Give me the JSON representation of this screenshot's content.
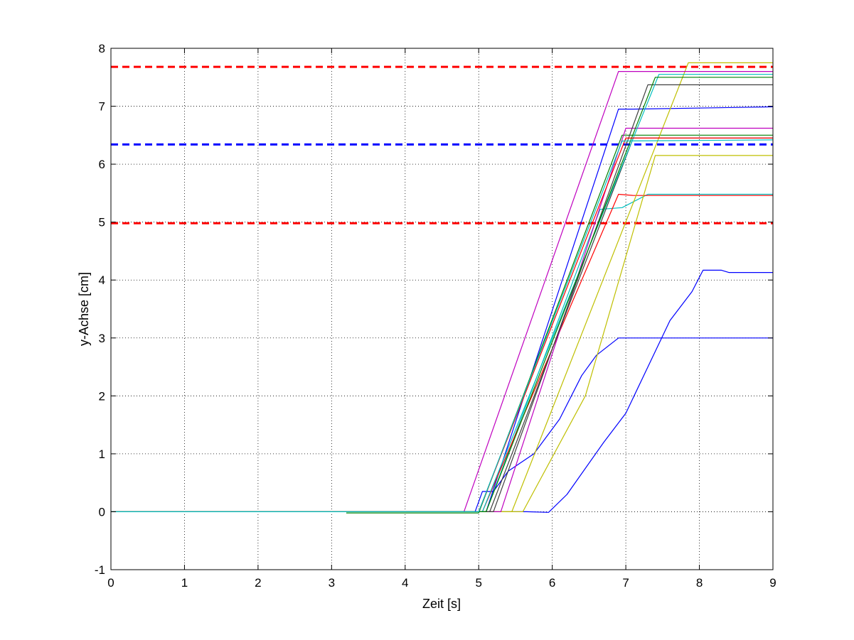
{
  "chart_data": {
    "type": "line",
    "xlabel": "Zeit [s]",
    "ylabel": "y-Achse [cm]",
    "xlim": [
      0,
      9
    ],
    "ylim": [
      -1,
      8
    ],
    "x_ticks": [
      0,
      1,
      2,
      3,
      4,
      5,
      6,
      7,
      8,
      9
    ],
    "y_ticks": [
      -1,
      0,
      1,
      2,
      3,
      4,
      5,
      6,
      7,
      8
    ],
    "grid": "on, dotted",
    "legend": "none",
    "reference_lines": [
      {
        "y": 7.68,
        "color": "#ff0000",
        "style": "dashed"
      },
      {
        "y": 6.34,
        "color": "#0000ff",
        "style": "dashed"
      },
      {
        "y": 4.98,
        "color": "#ff0000",
        "style": "dashed"
      }
    ],
    "series": [
      {
        "color": "#0000ff",
        "points": [
          [
            0.0,
            0.0
          ],
          [
            3.0,
            0.0
          ],
          [
            5.65,
            0.0
          ],
          [
            5.95,
            -0.01
          ],
          [
            6.2,
            0.3
          ],
          [
            6.7,
            1.2
          ],
          [
            7.0,
            1.7
          ],
          [
            7.3,
            2.5
          ],
          [
            7.6,
            3.3
          ],
          [
            7.9,
            3.8
          ],
          [
            8.05,
            4.17
          ],
          [
            8.3,
            4.17
          ],
          [
            8.4,
            4.13
          ],
          [
            9.0,
            4.13
          ]
        ]
      },
      {
        "color": "#0000ff",
        "points": [
          [
            0.0,
            0.0
          ],
          [
            4.95,
            0.0
          ],
          [
            5.05,
            0.35
          ],
          [
            5.2,
            0.35
          ],
          [
            5.4,
            0.7
          ],
          [
            5.75,
            1.0
          ],
          [
            6.1,
            1.6
          ],
          [
            6.4,
            2.35
          ],
          [
            6.6,
            2.7
          ],
          [
            6.9,
            3.0
          ],
          [
            7.1,
            3.0
          ],
          [
            9.0,
            3.0
          ]
        ]
      },
      {
        "color": "#0000ff",
        "points": [
          [
            0.0,
            0.0
          ],
          [
            5.1,
            0.0
          ],
          [
            6.9,
            6.95
          ],
          [
            7.1,
            6.95
          ],
          [
            9.0,
            6.99
          ]
        ]
      },
      {
        "color": "#00bfbf",
        "points": [
          [
            0.0,
            0.0
          ],
          [
            5.1,
            0.0
          ],
          [
            6.65,
            5.22
          ],
          [
            6.95,
            5.25
          ],
          [
            7.3,
            5.48
          ],
          [
            9.0,
            5.48
          ]
        ]
      },
      {
        "color": "#ff0000",
        "points": [
          [
            0.0,
            0.0
          ],
          [
            5.05,
            0.0
          ],
          [
            6.9,
            5.48
          ],
          [
            7.1,
            5.46
          ],
          [
            9.0,
            5.46
          ]
        ]
      },
      {
        "color": "#008000",
        "points": [
          [
            3.2,
            -0.02
          ],
          [
            5.0,
            -0.02
          ],
          [
            6.95,
            6.5
          ],
          [
            9.0,
            6.5
          ]
        ]
      },
      {
        "color": "#bfbf00",
        "points": [
          [
            0.0,
            0.0
          ],
          [
            5.6,
            0.0
          ],
          [
            6.45,
            2.0
          ],
          [
            7.4,
            6.15
          ],
          [
            9.0,
            6.15
          ]
        ]
      },
      {
        "color": "#bfbf00",
        "points": [
          [
            0.0,
            0.0
          ],
          [
            5.45,
            0.0
          ],
          [
            7.85,
            7.75
          ],
          [
            9.0,
            7.75
          ]
        ]
      },
      {
        "color": "#bf00bf",
        "points": [
          [
            0.0,
            0.0
          ],
          [
            4.8,
            0.0
          ],
          [
            6.9,
            7.6
          ],
          [
            9.0,
            7.6
          ]
        ]
      },
      {
        "color": "#bf00bf",
        "points": [
          [
            0.0,
            0.0
          ],
          [
            5.3,
            0.0
          ],
          [
            7.0,
            6.62
          ],
          [
            9.0,
            6.62
          ]
        ]
      },
      {
        "color": "#404040",
        "points": [
          [
            0.0,
            0.0
          ],
          [
            5.15,
            0.0
          ],
          [
            7.1,
            6.45
          ],
          [
            9.0,
            6.45
          ]
        ]
      },
      {
        "color": "#404040",
        "points": [
          [
            0.0,
            0.0
          ],
          [
            5.2,
            0.0
          ],
          [
            7.3,
            7.37
          ],
          [
            9.0,
            7.37
          ]
        ]
      },
      {
        "color": "#00bfbf",
        "points": [
          [
            0.0,
            0.0
          ],
          [
            5.05,
            0.0
          ],
          [
            7.45,
            7.55
          ],
          [
            9.0,
            7.55
          ]
        ]
      },
      {
        "color": "#008000",
        "points": [
          [
            0.0,
            0.0
          ],
          [
            5.1,
            0.0
          ],
          [
            7.4,
            7.5
          ],
          [
            9.0,
            7.5
          ]
        ]
      },
      {
        "color": "#ff0000",
        "points": [
          [
            0.0,
            0.0
          ],
          [
            5.0,
            0.0
          ],
          [
            7.0,
            6.45
          ],
          [
            9.0,
            6.45
          ]
        ]
      },
      {
        "color": "#00bfbf",
        "points": [
          [
            0.0,
            0.0
          ],
          [
            5.0,
            0.0
          ],
          [
            6.95,
            6.4
          ],
          [
            9.0,
            6.42
          ]
        ]
      }
    ]
  }
}
